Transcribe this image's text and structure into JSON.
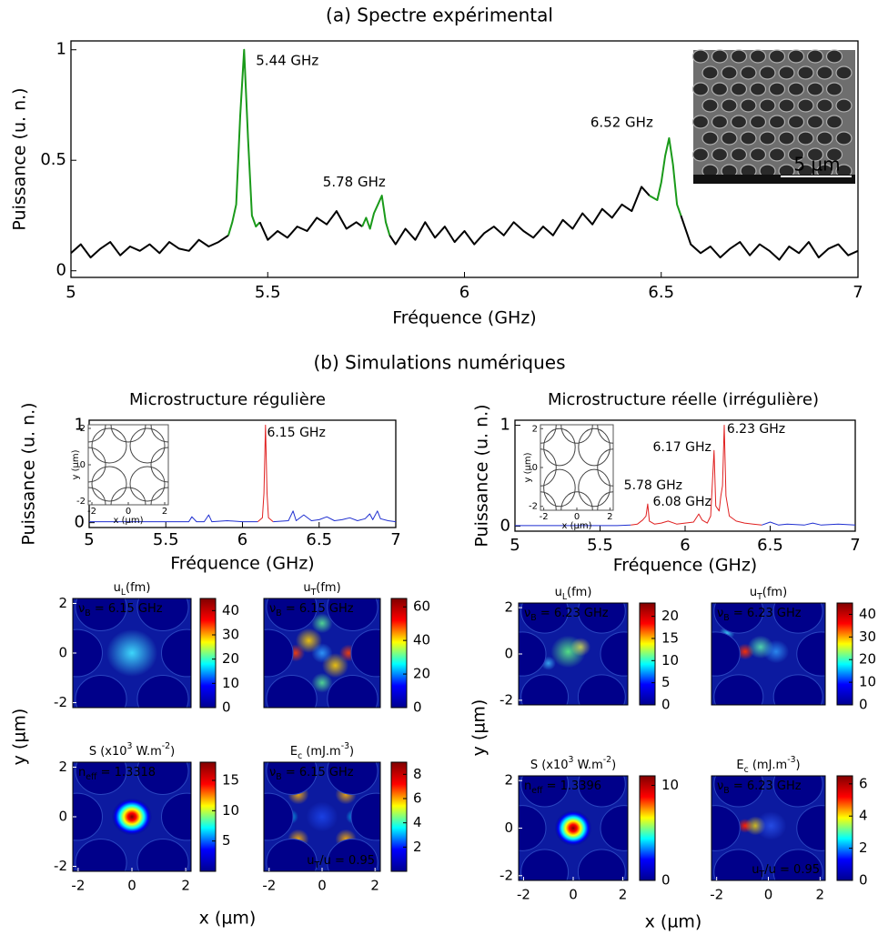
{
  "figure": {
    "section_b": "(b) Simulations numériques",
    "xlabels": [
      "x (µm)",
      "x (µm)"
    ],
    "ylabels": [
      "y (µm)",
      "y (µm)"
    ]
  },
  "chart_data": [
    {
      "type": "line",
      "title": "(a) Spectre expérimental",
      "xlabel": "Fréquence (GHz)",
      "ylabel": "Puissance (u. n.)",
      "xlim": [
        5,
        7
      ],
      "ylim": [
        -0.03,
        1.04
      ],
      "xticks": [
        5,
        5.5,
        6,
        6.5,
        7
      ],
      "yticks": [
        0,
        0.5,
        1
      ],
      "series": [
        {
          "color": "#000000",
          "x": [
            5,
            5.025,
            5.05,
            5.075,
            5.1,
            5.125,
            5.15,
            5.175,
            5.2,
            5.225,
            5.25,
            5.275,
            5.3,
            5.325,
            5.35,
            5.375,
            5.4
          ],
          "values": [
            0.08,
            0.12,
            0.06,
            0.1,
            0.13,
            0.07,
            0.11,
            0.09,
            0.12,
            0.08,
            0.13,
            0.1,
            0.09,
            0.14,
            0.11,
            0.13,
            0.16
          ]
        },
        {
          "color": "#1a9a1a",
          "x": [
            5.4,
            5.41,
            5.42,
            5.43,
            5.44,
            5.45,
            5.46,
            5.47,
            5.48
          ],
          "values": [
            0.16,
            0.22,
            0.3,
            0.7,
            1,
            0.6,
            0.25,
            0.2,
            0.22
          ]
        },
        {
          "color": "#000000",
          "x": [
            5.48,
            5.5,
            5.525,
            5.55,
            5.575,
            5.6,
            5.625,
            5.65,
            5.675,
            5.7,
            5.725,
            5.74
          ],
          "values": [
            0.22,
            0.14,
            0.18,
            0.15,
            0.2,
            0.18,
            0.24,
            0.21,
            0.27,
            0.19,
            0.22,
            0.2
          ]
        },
        {
          "color": "#1a9a1a",
          "x": [
            5.74,
            5.75,
            5.76,
            5.77,
            5.78,
            5.79,
            5.8,
            5.81
          ],
          "values": [
            0.2,
            0.24,
            0.19,
            0.26,
            0.3,
            0.34,
            0.22,
            0.16
          ]
        },
        {
          "color": "#000000",
          "x": [
            5.81,
            5.825,
            5.85,
            5.875,
            5.9,
            5.925,
            5.95,
            5.975,
            6,
            6.025,
            6.05,
            6.075,
            6.1,
            6.125,
            6.15,
            6.175,
            6.2,
            6.225,
            6.25,
            6.275,
            6.3,
            6.325,
            6.35,
            6.375,
            6.4,
            6.425,
            6.45,
            6.47
          ],
          "values": [
            0.16,
            0.12,
            0.19,
            0.14,
            0.22,
            0.15,
            0.2,
            0.13,
            0.18,
            0.12,
            0.17,
            0.2,
            0.16,
            0.22,
            0.18,
            0.15,
            0.2,
            0.16,
            0.23,
            0.19,
            0.26,
            0.21,
            0.28,
            0.24,
            0.3,
            0.27,
            0.38,
            0.34
          ]
        },
        {
          "color": "#1a9a1a",
          "x": [
            6.47,
            6.49,
            6.5,
            6.51,
            6.52,
            6.53,
            6.54,
            6.55
          ],
          "values": [
            0.34,
            0.32,
            0.4,
            0.52,
            0.6,
            0.48,
            0.3,
            0.25
          ]
        },
        {
          "color": "#000000",
          "x": [
            6.55,
            6.575,
            6.6,
            6.625,
            6.65,
            6.675,
            6.7,
            6.725,
            6.75,
            6.775,
            6.8,
            6.825,
            6.85,
            6.875,
            6.9,
            6.925,
            6.95,
            6.975,
            7
          ],
          "values": [
            0.25,
            0.12,
            0.08,
            0.11,
            0.06,
            0.1,
            0.13,
            0.07,
            0.12,
            0.09,
            0.05,
            0.11,
            0.08,
            0.13,
            0.06,
            0.1,
            0.12,
            0.07,
            0.09
          ]
        }
      ],
      "annotation_color": "#1a9a1a",
      "annotations": [
        {
          "text": "5.44 GHz",
          "x": 5.47,
          "y": 0.95
        },
        {
          "text": "5.78 GHz",
          "x": 5.64,
          "y": 0.4
        },
        {
          "text": "6.52 GHz",
          "x": 6.32,
          "y": 0.67
        }
      ],
      "inset_label": "5 µm"
    },
    {
      "type": "line",
      "title": "Microstructure régulière",
      "xlabel": "Fréquence (GHz)",
      "ylabel": "Puissance (u. n.)",
      "xlim": [
        5,
        7
      ],
      "ylim": [
        -0.05,
        1.05
      ],
      "xticks": [
        5,
        5.5,
        6,
        6.5,
        7
      ],
      "yticks": [
        0,
        1
      ],
      "series": [
        {
          "color": "#1f2fd0",
          "x": [
            5,
            5.2,
            5.4,
            5.6,
            5.65,
            5.67,
            5.7,
            5.75,
            5.78,
            5.8,
            5.9,
            6,
            6.1
          ],
          "values": [
            0.01,
            0.01,
            0.01,
            0.01,
            0.01,
            0.06,
            0.01,
            0.01,
            0.08,
            0.01,
            0.02,
            0.01,
            0.01
          ]
        },
        {
          "color": "#e02020",
          "x": [
            6.1,
            6.13,
            6.14,
            6.15,
            6.16,
            6.17,
            6.2
          ],
          "values": [
            0.01,
            0.05,
            0.3,
            1,
            0.3,
            0.05,
            0.01
          ]
        },
        {
          "color": "#1f2fd0",
          "x": [
            6.2,
            6.3,
            6.33,
            6.35,
            6.4,
            6.45,
            6.5,
            6.55,
            6.6,
            6.65,
            6.7,
            6.75,
            6.8,
            6.83,
            6.85,
            6.88,
            6.9,
            6.95,
            7
          ],
          "values": [
            0.01,
            0.02,
            0.12,
            0.02,
            0.08,
            0.02,
            0.03,
            0.06,
            0.02,
            0.03,
            0.05,
            0.02,
            0.04,
            0.09,
            0.03,
            0.12,
            0.04,
            0.02,
            0.01
          ]
        }
      ],
      "annotation_color": "#e02020",
      "annotations": [
        {
          "text": "6.15 GHz",
          "x": 6.16,
          "y": 0.92
        }
      ],
      "inset": {
        "xlim": [
          -2.2,
          2.2
        ],
        "ylim": [
          -2.2,
          2.2
        ],
        "xticks": [
          -2,
          0,
          2
        ],
        "yticks": [
          -2,
          0,
          2
        ],
        "xlabel": "x (µm)",
        "ylabel": "y (µm)"
      }
    },
    {
      "type": "line",
      "title": "Microstructure réelle (irrégulière)",
      "xlabel": "Fréquence (GHz)",
      "ylabel": "Puissance (u. n.)",
      "xlim": [
        5,
        7
      ],
      "ylim": [
        -0.05,
        1.05
      ],
      "xticks": [
        5,
        5.5,
        6,
        6.5,
        7
      ],
      "yticks": [
        0,
        1
      ],
      "series": [
        {
          "color": "#1f2fd0",
          "x": [
            5,
            5.2,
            5.4,
            5.6,
            5.68
          ],
          "values": [
            0.005,
            0.005,
            0.005,
            0.005,
            0.01
          ]
        },
        {
          "color": "#e02020",
          "x": [
            5.68,
            5.72,
            5.75,
            5.77,
            5.78,
            5.79,
            5.82,
            5.86,
            5.9,
            5.95,
            6,
            6.05,
            6.08,
            6.1,
            6.13,
            6.15,
            6.17,
            6.18,
            6.2,
            6.21,
            6.22,
            6.23,
            6.24,
            6.26,
            6.3,
            6.35,
            6.4,
            6.45
          ],
          "values": [
            0.01,
            0.02,
            0.06,
            0.1,
            0.22,
            0.05,
            0.02,
            0.03,
            0.05,
            0.02,
            0.03,
            0.04,
            0.12,
            0.06,
            0.03,
            0.1,
            0.75,
            0.2,
            0.15,
            0.3,
            0.4,
            1,
            0.3,
            0.1,
            0.05,
            0.03,
            0.02,
            0.01
          ]
        },
        {
          "color": "#1f2fd0",
          "x": [
            6.45,
            6.5,
            6.55,
            6.6,
            6.7,
            6.75,
            6.8,
            6.9,
            7
          ],
          "values": [
            0.01,
            0.04,
            0.01,
            0.02,
            0.01,
            0.03,
            0.01,
            0.02,
            0.01
          ]
        }
      ],
      "annotation_color": "#e02020",
      "annotations": [
        {
          "text": "6.23 GHz",
          "x": 6.245,
          "y": 0.96
        },
        {
          "text": "6.17 GHz",
          "x": 5.81,
          "y": 0.78
        },
        {
          "text": "5.78 GHz",
          "x": 5.64,
          "y": 0.4
        },
        {
          "text": "6.08 GHz",
          "x": 5.81,
          "y": 0.24
        }
      ],
      "inset": {
        "xlim": [
          -2.2,
          2.2
        ],
        "ylim": [
          -2.2,
          2.2
        ],
        "xticks": [
          -2,
          0,
          2
        ],
        "yticks": [
          -2,
          0,
          2
        ],
        "xlabel": "x (µm)",
        "ylabel": "y (µm)"
      }
    },
    {
      "type": "heatmap",
      "title": [
        {
          "text": "u"
        },
        {
          "text": "L",
          "sub": true
        },
        {
          "text": "(fm)"
        }
      ],
      "colormap": "jet",
      "clim": [
        0,
        45
      ],
      "cticks": [
        0,
        10,
        20,
        30,
        40
      ],
      "xlim": [
        -2.2,
        2.2
      ],
      "ylim": [
        -2.2,
        2.2
      ],
      "yticks": [
        -2,
        0,
        2
      ],
      "annotations": [
        {
          "corner": "top-left",
          "text": [
            {
              "text": "ν"
            },
            {
              "text": "B",
              "sub": true
            },
            {
              "text": " = 6.15 GHz"
            }
          ]
        }
      ]
    },
    {
      "type": "heatmap",
      "title": [
        {
          "text": "u"
        },
        {
          "text": "T",
          "sub": true
        },
        {
          "text": "(fm)"
        }
      ],
      "colormap": "jet",
      "clim": [
        0,
        65
      ],
      "cticks": [
        0,
        20,
        40,
        60
      ],
      "xlim": [
        -2.2,
        2.2
      ],
      "ylim": [
        -2.2,
        2.2
      ],
      "annotations": [
        {
          "corner": "top-left",
          "text": [
            {
              "text": "ν"
            },
            {
              "text": "B",
              "sub": true
            },
            {
              "text": " = 6.15 GHz"
            }
          ]
        }
      ]
    },
    {
      "type": "heatmap",
      "title": [
        {
          "text": "S (x10"
        },
        {
          "text": "3",
          "sup": true
        },
        {
          "text": " W.m"
        },
        {
          "text": "-2",
          "sup": true
        },
        {
          "text": ")"
        }
      ],
      "colormap": "jet",
      "clim": [
        0,
        18
      ],
      "cticks": [
        5,
        10,
        15
      ],
      "xlim": [
        -2.2,
        2.2
      ],
      "ylim": [
        -2.2,
        2.2
      ],
      "xticks": [
        -2,
        0,
        2
      ],
      "yticks": [
        -2,
        0,
        2
      ],
      "annotations": [
        {
          "corner": "top-left",
          "text": [
            {
              "text": "n"
            },
            {
              "text": "eff",
              "sub": true
            },
            {
              "text": " = 1.3318"
            }
          ]
        }
      ]
    },
    {
      "type": "heatmap",
      "title": [
        {
          "text": "E"
        },
        {
          "text": "c",
          "sub": true
        },
        {
          "text": " (mJ.m"
        },
        {
          "text": "-3",
          "sup": true
        },
        {
          "text": ")"
        }
      ],
      "colormap": "jet",
      "clim": [
        0,
        9
      ],
      "cticks": [
        2,
        4,
        6,
        8
      ],
      "xlim": [
        -2.2,
        2.2
      ],
      "ylim": [
        -2.2,
        2.2
      ],
      "xticks": [
        -2,
        0,
        2
      ],
      "annotations": [
        {
          "corner": "top-left",
          "text": [
            {
              "text": "ν"
            },
            {
              "text": "B",
              "sub": true
            },
            {
              "text": " = 6.15 GHz"
            }
          ]
        },
        {
          "corner": "bottom-right",
          "text": [
            {
              "text": "u"
            },
            {
              "text": "T",
              "sub": true
            },
            {
              "text": "/u = 0.95"
            }
          ]
        }
      ]
    },
    {
      "type": "heatmap",
      "title": [
        {
          "text": "u"
        },
        {
          "text": "L",
          "sub": true
        },
        {
          "text": "(fm)"
        }
      ],
      "colormap": "jet",
      "clim": [
        0,
        23
      ],
      "cticks": [
        0,
        5,
        10,
        15,
        20
      ],
      "xlim": [
        -2.2,
        2.2
      ],
      "ylim": [
        -2.2,
        2.2
      ],
      "yticks": [
        -2,
        0,
        2
      ],
      "annotations": [
        {
          "corner": "top-left",
          "text": [
            {
              "text": "ν"
            },
            {
              "text": "B",
              "sub": true
            },
            {
              "text": " = 6.23 GHz"
            }
          ]
        }
      ]
    },
    {
      "type": "heatmap",
      "title": [
        {
          "text": "u"
        },
        {
          "text": "T",
          "sub": true
        },
        {
          "text": "(fm)"
        }
      ],
      "colormap": "jet",
      "clim": [
        0,
        45
      ],
      "cticks": [
        0,
        10,
        20,
        30,
        40
      ],
      "xlim": [
        -2.2,
        2.2
      ],
      "ylim": [
        -2.2,
        2.2
      ],
      "annotations": [
        {
          "corner": "top-left",
          "text": [
            {
              "text": "ν"
            },
            {
              "text": "B",
              "sub": true
            },
            {
              "text": " = 6.23 GHz"
            }
          ]
        }
      ]
    },
    {
      "type": "heatmap",
      "title": [
        {
          "text": "S (x10"
        },
        {
          "text": "3",
          "sup": true
        },
        {
          "text": " W.m"
        },
        {
          "text": "-2",
          "sup": true
        },
        {
          "text": ")"
        }
      ],
      "colormap": "jet",
      "clim": [
        0,
        11
      ],
      "cticks": [
        0,
        10
      ],
      "xlim": [
        -2.2,
        2.2
      ],
      "ylim": [
        -2.2,
        2.2
      ],
      "xticks": [
        -2,
        0,
        2
      ],
      "yticks": [
        -2,
        0,
        2
      ],
      "annotations": [
        {
          "corner": "top-left",
          "text": [
            {
              "text": "n"
            },
            {
              "text": "eff",
              "sub": true
            },
            {
              "text": " = 1.3396"
            }
          ]
        }
      ]
    },
    {
      "type": "heatmap",
      "title": [
        {
          "text": "E"
        },
        {
          "text": "c",
          "sub": true
        },
        {
          "text": " (mJ.m"
        },
        {
          "text": "-3",
          "sup": true
        },
        {
          "text": ")"
        }
      ],
      "colormap": "jet",
      "clim": [
        0,
        6.5
      ],
      "cticks": [
        0,
        2,
        4,
        6
      ],
      "xlim": [
        -2.2,
        2.2
      ],
      "ylim": [
        -2.2,
        2.2
      ],
      "xticks": [
        -2,
        0,
        2
      ],
      "annotations": [
        {
          "corner": "top-left",
          "text": [
            {
              "text": "ν"
            },
            {
              "text": "B",
              "sub": true
            },
            {
              "text": " = 6.23 GHz"
            }
          ]
        },
        {
          "corner": "bottom-right",
          "text": [
            {
              "text": "u"
            },
            {
              "text": "T",
              "sub": true
            },
            {
              "text": "/u = 0.95"
            }
          ]
        }
      ]
    }
  ]
}
